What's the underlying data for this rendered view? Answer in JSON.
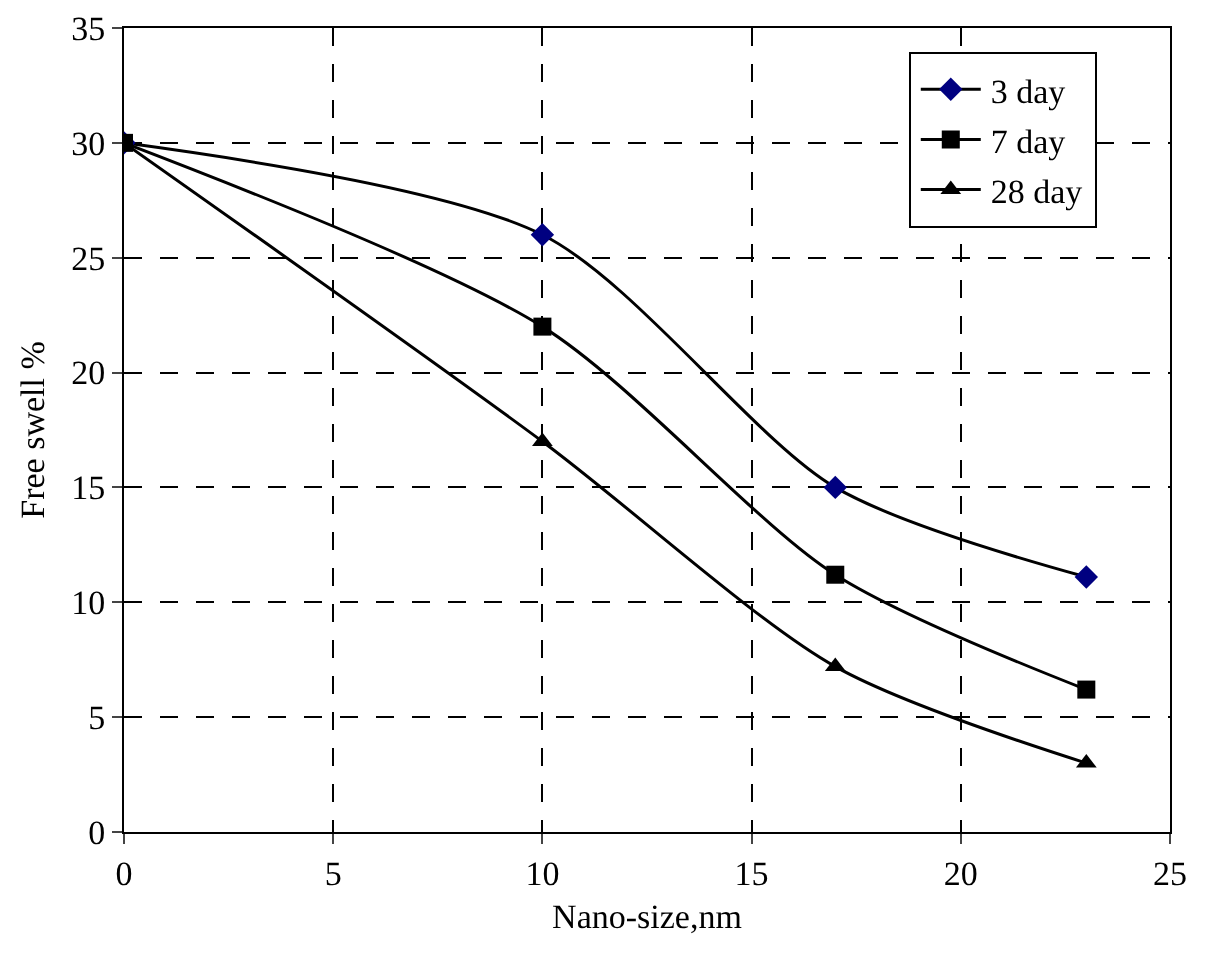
{
  "chart_data": {
    "type": "line",
    "xlabel": "Nano-size,nm",
    "ylabel": "Free swell %",
    "series": [
      {
        "name": "3 day",
        "color": "#000080",
        "marker": "diamond",
        "x": [
          0,
          10,
          17,
          23
        ],
        "values": [
          30,
          26,
          15,
          11.1
        ]
      },
      {
        "name": "7 day",
        "color": "#000000",
        "marker": "square",
        "x": [
          0,
          10,
          17,
          23
        ],
        "values": [
          30,
          22,
          11.2,
          6.2
        ]
      },
      {
        "name": "28 day",
        "color": "#000000",
        "marker": "triangle",
        "x": [
          0,
          10,
          17,
          23
        ],
        "values": [
          30,
          17,
          7.2,
          3
        ]
      }
    ],
    "xlim": [
      0,
      25
    ],
    "xticks": [
      0,
      5,
      10,
      15,
      20,
      25
    ],
    "ylim": [
      0,
      35
    ],
    "yticks": [
      0,
      5,
      10,
      15,
      20,
      25,
      30,
      35
    ],
    "grid": true,
    "legend": "top right",
    "line_style": "solid"
  }
}
